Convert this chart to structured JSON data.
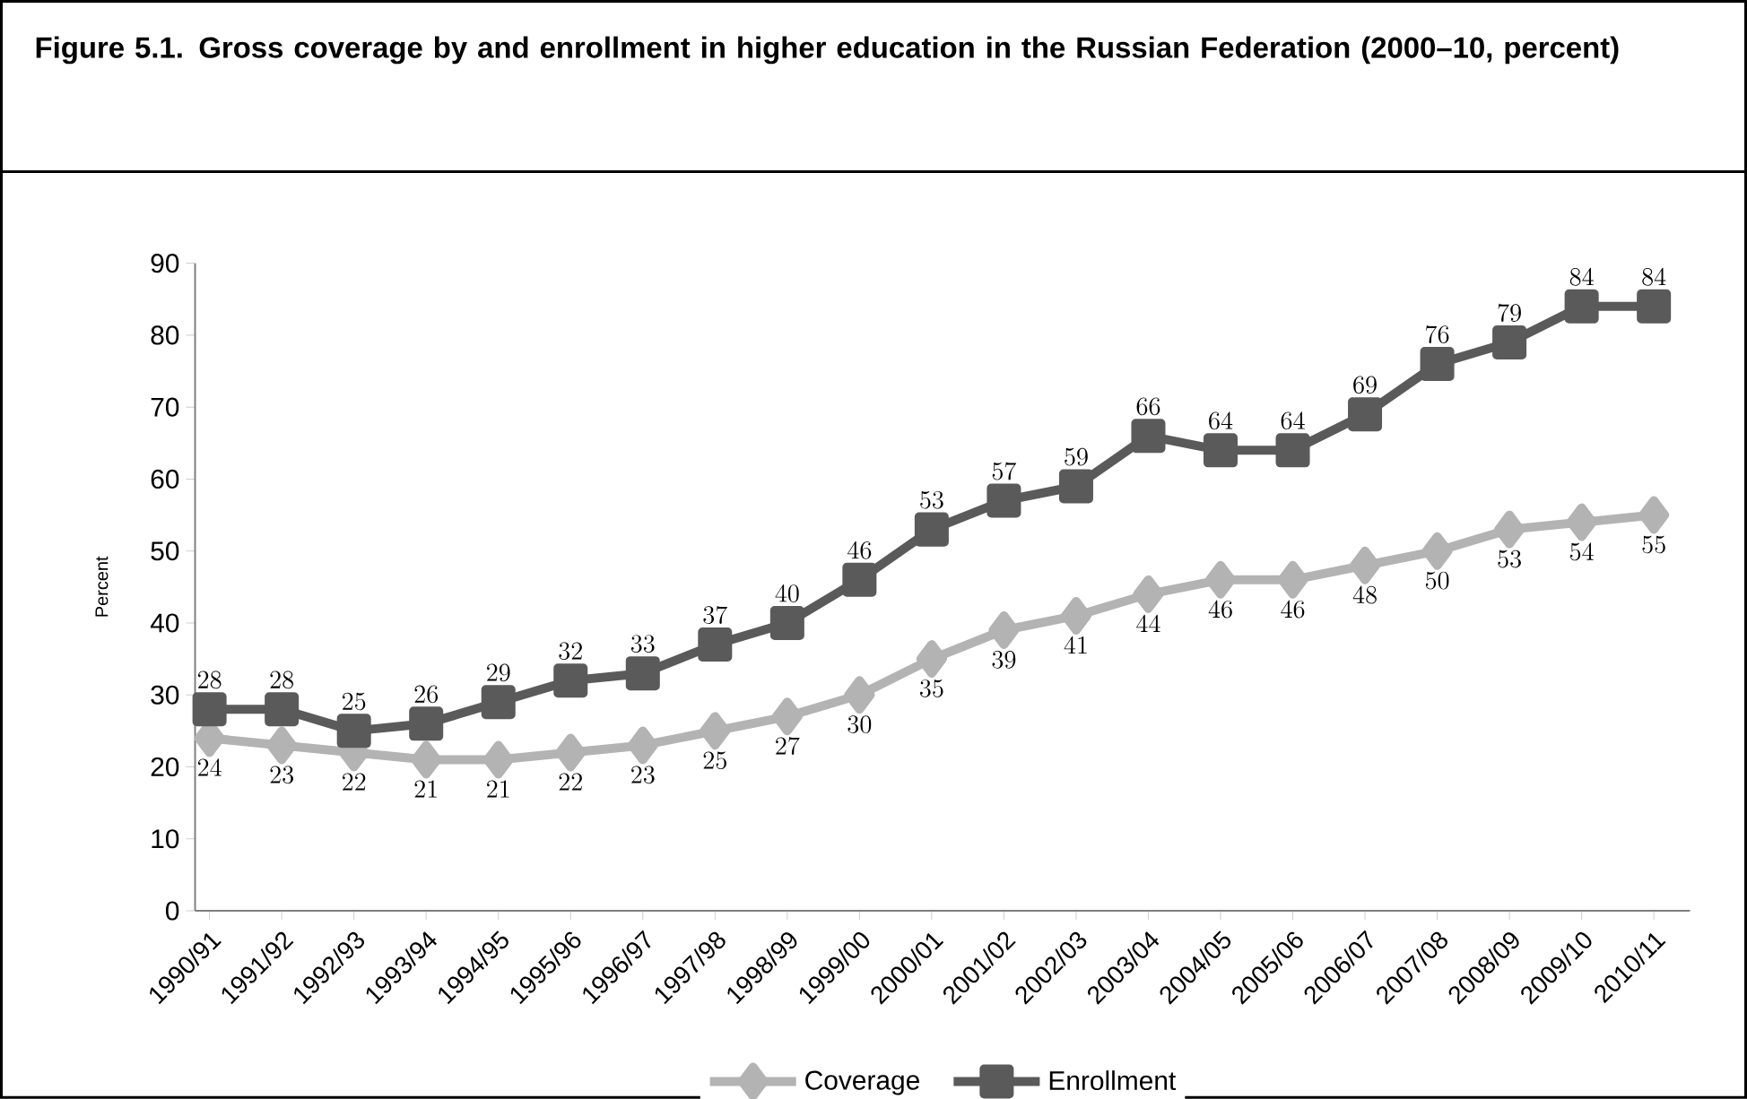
{
  "chart_data": {
    "type": "line",
    "title": "Figure 5.1. Gross coverage by and enrollment in higher education in the Russian Federation (2000–10, percent)",
    "ylabel": "Percent",
    "categories": [
      "1990/91",
      "1991/92",
      "1992/93",
      "1993/94",
      "1994/95",
      "1995/96",
      "1996/97",
      "1997/98",
      "1998/99",
      "1999/00",
      "2000/01",
      "2001/02",
      "2002/03",
      "2003/04",
      "2004/05",
      "2005/06",
      "2006/07",
      "2007/08",
      "2008/09",
      "2009/10",
      "2010/11"
    ],
    "series": [
      {
        "name": "Coverage",
        "color": "#b3b3b3",
        "marker": "diamond",
        "values": [
          24,
          23,
          22,
          21,
          21,
          22,
          23,
          25,
          27,
          30,
          35,
          39,
          41,
          44,
          46,
          46,
          48,
          50,
          53,
          54,
          55
        ]
      },
      {
        "name": "Enrollment",
        "color": "#5a5a5a",
        "marker": "square",
        "values": [
          28,
          28,
          25,
          26,
          29,
          32,
          33,
          37,
          40,
          46,
          53,
          57,
          59,
          66,
          64,
          64,
          69,
          76,
          79,
          84,
          84
        ]
      }
    ],
    "ylim": [
      0,
      90
    ],
    "yticks": [
      0,
      10,
      20,
      30,
      40,
      50,
      60,
      70,
      80,
      90
    ],
    "data_labels": true,
    "grid": false,
    "legend": "bottom",
    "line_style": "solid"
  }
}
